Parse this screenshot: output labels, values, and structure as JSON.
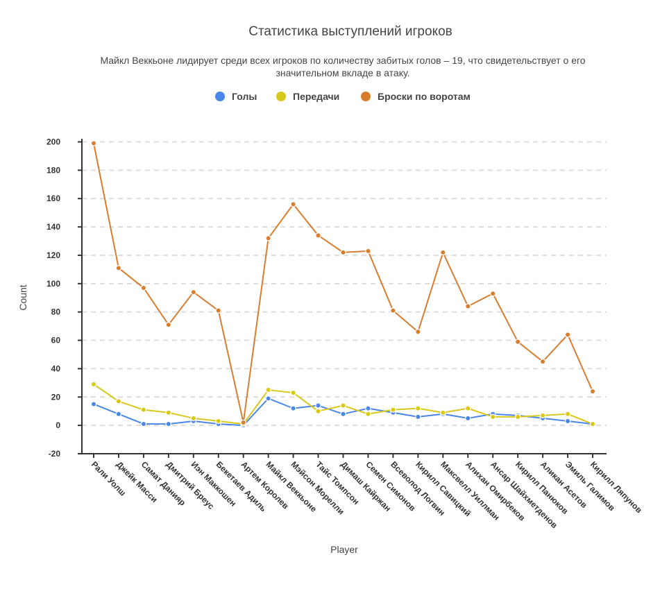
{
  "chart_data": {
    "type": "line",
    "title": "Статистика выступлений игроков",
    "subtitle_lines": [
      "Майкл Веккьоне лидирует среди всех игроков по количеству забитых голов – 19, что свидетельствует о его",
      "значительном вкладе в атаку."
    ],
    "xlabel": "Player",
    "ylabel": "Count",
    "ylim": [
      -20,
      200
    ],
    "yticks": [
      -20,
      0,
      20,
      40,
      60,
      80,
      100,
      120,
      140,
      160,
      180,
      200
    ],
    "grid": true,
    "legend_position": "top-center",
    "categories": [
      "Рали Уолш",
      "Джейк Масси",
      "Самат Данияр",
      "Дмитрий Бреус",
      "Иэн Маккошен",
      "Бекетаев Адиль",
      "Артем Королев",
      "Майкл Веккьоне",
      "Мэйсон Морелли",
      "Тайс Томпсон",
      "Димаш Кайржан",
      "Семен Симонов",
      "Всеволод Логвин",
      "Кирилл Савицкий",
      "Максвелл Уиллман",
      "Алихан Омирбеков",
      "Ансар Шайхметденов",
      "Кирилл Панюков",
      "Аликан Асетов",
      "Эмиль Галимов",
      "Кирилл Ляпунов"
    ],
    "series": [
      {
        "name": "Голы",
        "color": "#4a86e8",
        "values": [
          15,
          8,
          1,
          1,
          3,
          1,
          0,
          19,
          12,
          14,
          8,
          12,
          9,
          6,
          8,
          5,
          8,
          7,
          5,
          3,
          1
        ]
      },
      {
        "name": "Передачи",
        "color": "#d8c81a",
        "values": [
          29,
          17,
          11,
          9,
          5,
          3,
          1,
          25,
          23,
          10,
          14,
          8,
          11,
          12,
          9,
          12,
          6,
          6,
          7,
          8,
          1
        ]
      },
      {
        "name": "Броски по воротам",
        "color": "#d67d2f",
        "values": [
          199,
          111,
          97,
          71,
          94,
          81,
          2,
          132,
          156,
          134,
          122,
          123,
          81,
          66,
          122,
          84,
          93,
          59,
          45,
          64,
          24
        ]
      }
    ]
  }
}
